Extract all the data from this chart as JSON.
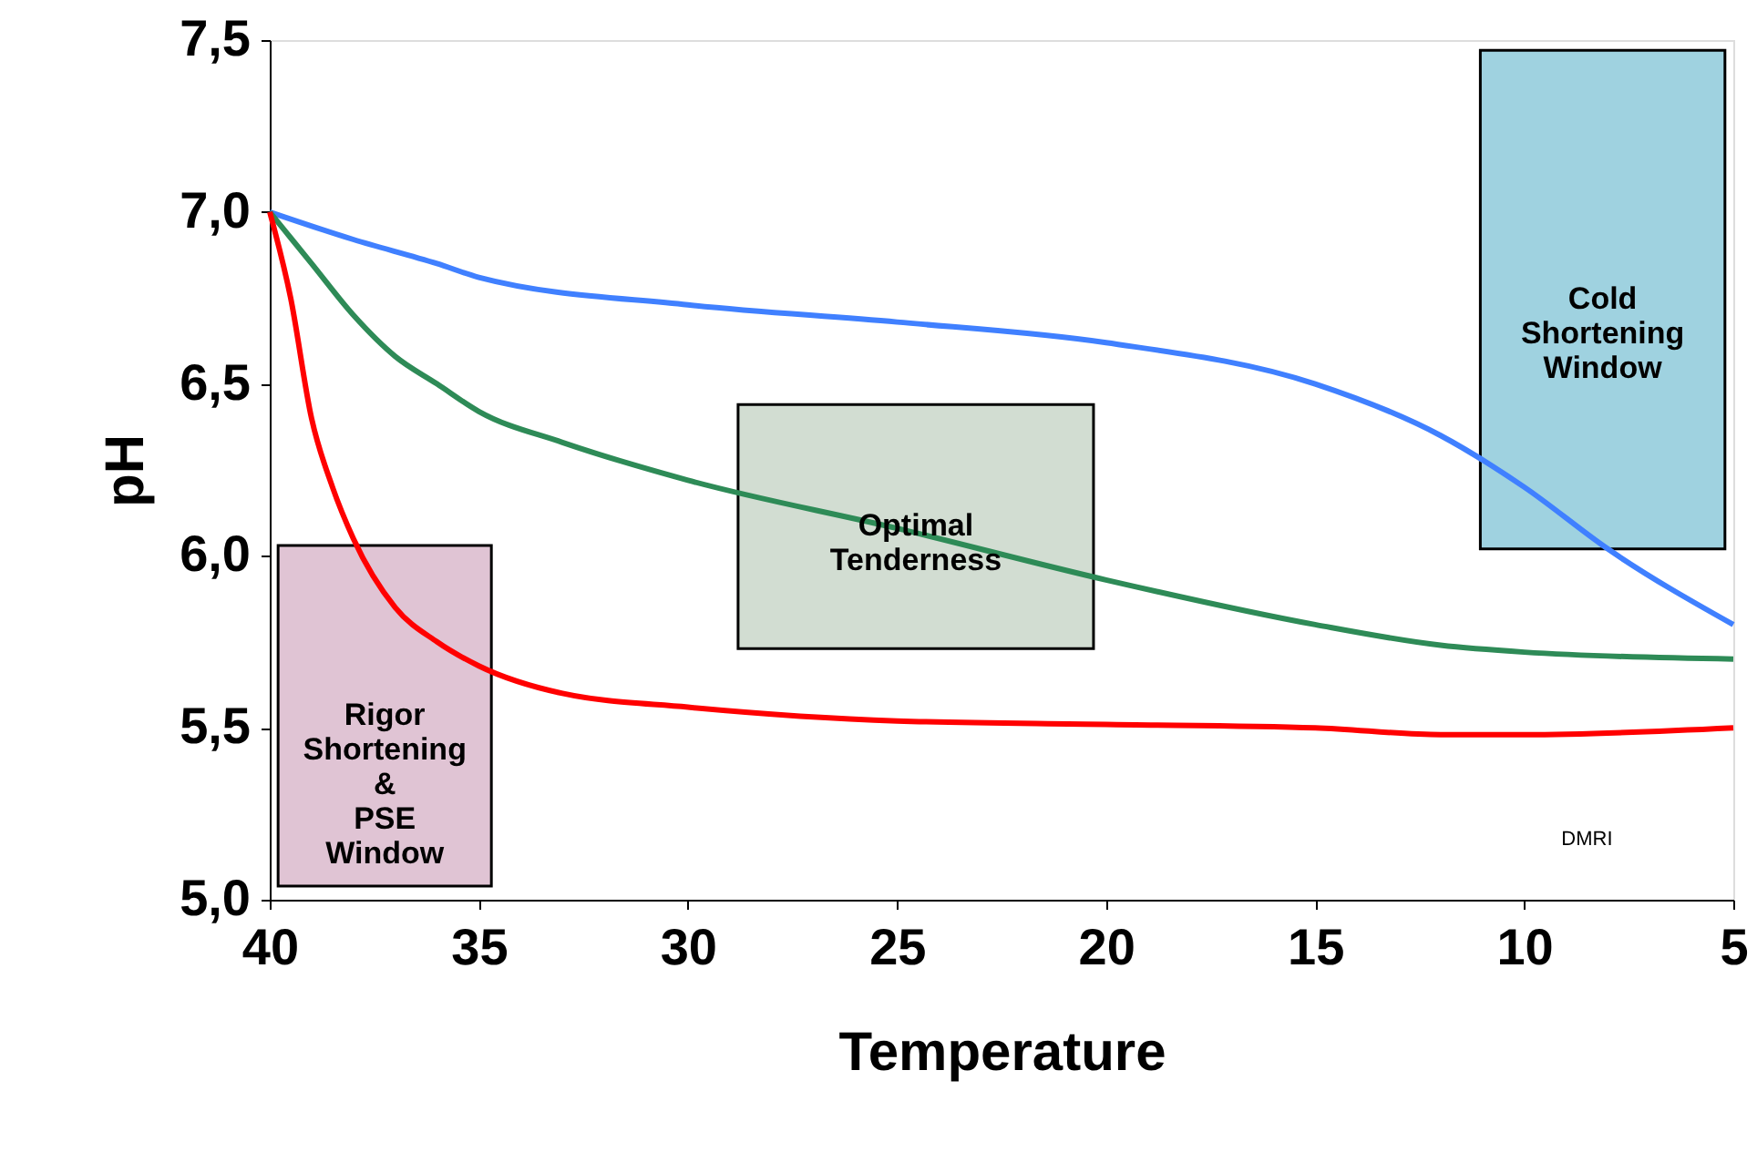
{
  "chart_data": {
    "type": "line",
    "xlabel": "Temperature",
    "ylabel": "pH",
    "xlim": [
      40,
      5
    ],
    "xticks": [
      40,
      35,
      30,
      25,
      20,
      15,
      10,
      5
    ],
    "ylim": [
      5.0,
      7.5
    ],
    "yticks": [
      {
        "value": 5.0,
        "label": "5,0"
      },
      {
        "value": 5.5,
        "label": "5,5"
      },
      {
        "value": 6.0,
        "label": "6,0"
      },
      {
        "value": 6.5,
        "label": "6,5"
      },
      {
        "value": 7.0,
        "label": "7,0"
      },
      {
        "value": 7.5,
        "label": "7,5"
      }
    ],
    "grid": false,
    "marker": "none",
    "line_style": "solid",
    "series": [
      {
        "color": "#4080ff",
        "x": [
          40,
          38,
          36,
          35,
          30,
          25,
          20,
          15,
          12,
          10,
          8,
          5
        ],
        "values": [
          7.0,
          6.92,
          6.85,
          6.81,
          6.73,
          6.68,
          6.62,
          6.5,
          6.35,
          6.2,
          6.02,
          5.8
        ]
      },
      {
        "color": "#2e8b57",
        "x": [
          40,
          39,
          38,
          37,
          36,
          35,
          33,
          30,
          25,
          20,
          15,
          12,
          10,
          5
        ],
        "values": [
          7.0,
          6.85,
          6.7,
          6.58,
          6.5,
          6.42,
          6.33,
          6.22,
          6.08,
          5.93,
          5.8,
          5.74,
          5.72,
          5.7
        ]
      },
      {
        "color": "#ff0000",
        "x": [
          40,
          39.5,
          39,
          38.5,
          38,
          37,
          36,
          35,
          33,
          30,
          25,
          20,
          15,
          12,
          10,
          5
        ],
        "values": [
          7.0,
          6.75,
          6.4,
          6.2,
          6.05,
          5.85,
          5.75,
          5.68,
          5.6,
          5.56,
          5.52,
          5.51,
          5.5,
          5.48,
          5.48,
          5.5
        ]
      }
    ],
    "bands": [
      {
        "axis": "x",
        "from": 39.8,
        "to": 34.7,
        "label": "Rigor\nShortening\n&\nPSE\nWindow",
        "color": "#e0c4d4"
      },
      {
        "axis": "x",
        "from": 28.8,
        "to": 20.3,
        "label": "Optimal\nTenderness",
        "color": "#d2ddd2"
      },
      {
        "axis": "x",
        "from": 11.05,
        "to": 5.2,
        "label": "Cold\nShortening\nWindow",
        "color": "#9fd2e0"
      }
    ],
    "annotations": [
      "DMRI"
    ]
  }
}
